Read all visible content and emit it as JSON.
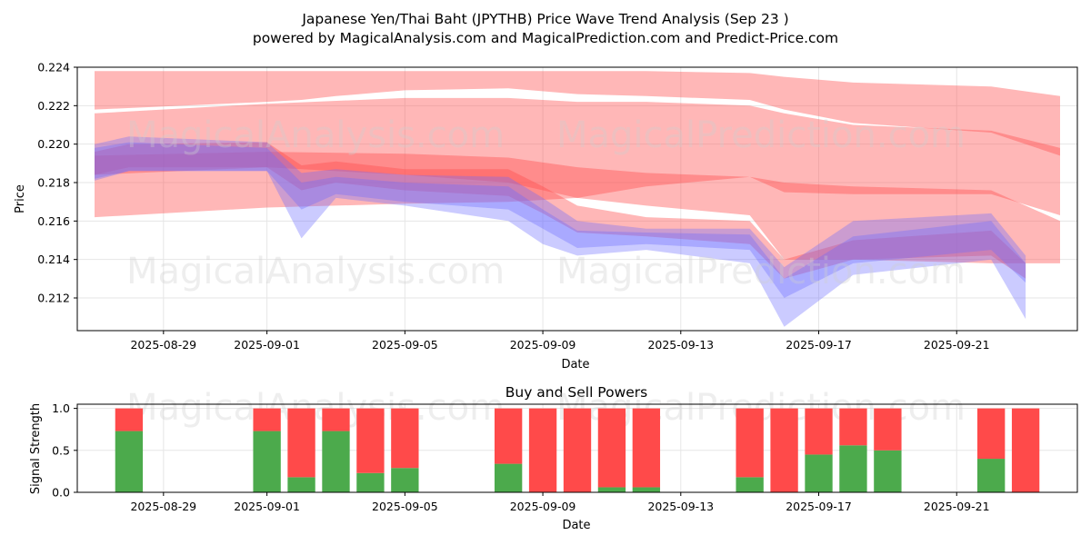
{
  "chart_data": [
    {
      "type": "area",
      "title": "Japanese Yen/Thai Baht (JPYTHB) Price Wave Trend Analysis (Sep 23 )",
      "subtitle": "powered by MagicalAnalysis.com and MagicalPrediction.com and Predict-Price.com",
      "xlabel": "Date",
      "ylabel": "Price",
      "xlim": [
        "2025-08-26T12:00",
        "2025-09-24T12:00"
      ],
      "ylim": [
        0.2103,
        0.224
      ],
      "x_ticks": [
        "2025-08-29",
        "2025-09-01",
        "2025-09-05",
        "2025-09-09",
        "2025-09-13",
        "2025-09-17",
        "2025-09-21"
      ],
      "y_ticks": [
        "0.212",
        "0.214",
        "0.216",
        "0.218",
        "0.220",
        "0.222",
        "0.224"
      ],
      "grid": true,
      "watermarks": [
        "MagicalAnalysis.com",
        "MagicalPrediction.com"
      ],
      "colors": {
        "red_band": "#ff4a4a",
        "blue_band": "#6a6aff"
      },
      "series": [
        {
          "kind": "red_wave",
          "x": [
            "2025-08-27",
            "2025-09-01",
            "2025-09-02",
            "2025-09-03",
            "2025-09-05",
            "2025-09-08",
            "2025-09-10",
            "2025-09-12",
            "2025-09-15",
            "2025-09-16",
            "2025-09-18",
            "2025-09-22",
            "2025-09-24"
          ],
          "upper": [
            0.2238,
            0.2238,
            0.2238,
            0.2238,
            0.2238,
            0.2238,
            0.2238,
            0.2238,
            0.2237,
            0.2235,
            0.2232,
            0.223,
            0.2225
          ],
          "lower": [
            0.2218,
            0.2222,
            0.2223,
            0.2225,
            0.2228,
            0.2229,
            0.2226,
            0.2225,
            0.2223,
            0.2218,
            0.2211,
            0.2206,
            0.2194
          ]
        },
        {
          "kind": "red_wave",
          "x": [
            "2025-08-27",
            "2025-09-01",
            "2025-09-05",
            "2025-09-08",
            "2025-09-10",
            "2025-09-12",
            "2025-09-15",
            "2025-09-16",
            "2025-09-18",
            "2025-09-22",
            "2025-09-24"
          ],
          "upper": [
            0.2216,
            0.2221,
            0.2224,
            0.2224,
            0.2222,
            0.2222,
            0.222,
            0.2216,
            0.221,
            0.2207,
            0.2198
          ],
          "lower": [
            0.2162,
            0.2167,
            0.2169,
            0.217,
            0.2172,
            0.2178,
            0.2183,
            0.2175,
            0.2174,
            0.2174,
            0.2163
          ]
        },
        {
          "kind": "red_wave",
          "x": [
            "2025-08-27",
            "2025-09-01",
            "2025-09-05",
            "2025-09-08",
            "2025-09-10",
            "2025-09-12",
            "2025-09-15",
            "2025-09-16",
            "2025-09-18",
            "2025-09-22",
            "2025-09-24"
          ],
          "upper": [
            0.2194,
            0.2196,
            0.2195,
            0.2193,
            0.2188,
            0.2185,
            0.2183,
            0.218,
            0.2178,
            0.2176,
            0.216
          ],
          "lower": [
            0.2184,
            0.2188,
            0.2184,
            0.218,
            0.2172,
            0.2168,
            0.2163,
            0.214,
            0.214,
            0.2138,
            0.2138
          ]
        },
        {
          "kind": "red_wave",
          "x": [
            "2025-08-27",
            "2025-08-28",
            "2025-09-01",
            "2025-09-02",
            "2025-09-03",
            "2025-09-05",
            "2025-09-08",
            "2025-09-09",
            "2025-09-10",
            "2025-09-12",
            "2025-09-15",
            "2025-09-16",
            "2025-09-18",
            "2025-09-22",
            "2025-09-23"
          ],
          "upper": [
            0.2196,
            0.22,
            0.2201,
            0.2189,
            0.2191,
            0.2187,
            0.2187,
            0.2178,
            0.2168,
            0.2162,
            0.216,
            0.214,
            0.215,
            0.2155,
            0.2138
          ],
          "lower": [
            0.2184,
            0.2188,
            0.2188,
            0.2176,
            0.218,
            0.2176,
            0.2173,
            0.2164,
            0.2154,
            0.2152,
            0.2148,
            0.213,
            0.214,
            0.2142,
            0.213
          ]
        },
        {
          "kind": "blue_wave",
          "x": [
            "2025-08-27",
            "2025-08-28",
            "2025-09-01",
            "2025-09-02",
            "2025-09-03",
            "2025-09-05",
            "2025-09-08",
            "2025-09-09",
            "2025-09-10",
            "2025-09-12",
            "2025-09-15",
            "2025-09-16",
            "2025-09-18",
            "2025-09-22",
            "2025-09-23"
          ],
          "upper": [
            0.22,
            0.2204,
            0.2201,
            0.2185,
            0.2187,
            0.2184,
            0.2183,
            0.2172,
            0.216,
            0.2156,
            0.2156,
            0.2136,
            0.216,
            0.2164,
            0.2142
          ],
          "lower": [
            0.2181,
            0.2186,
            0.2186,
            0.2166,
            0.2174,
            0.217,
            0.2166,
            0.2156,
            0.2146,
            0.2148,
            0.2145,
            0.212,
            0.2138,
            0.2145,
            0.2128
          ]
        },
        {
          "kind": "blue_wave",
          "x": [
            "2025-08-27",
            "2025-08-28",
            "2025-09-01",
            "2025-09-02",
            "2025-09-03",
            "2025-09-05",
            "2025-09-08",
            "2025-09-09",
            "2025-09-10",
            "2025-09-12",
            "2025-09-15",
            "2025-09-16",
            "2025-09-18",
            "2025-09-22",
            "2025-09-23"
          ],
          "upper": [
            0.2198,
            0.2201,
            0.2198,
            0.218,
            0.2183,
            0.218,
            0.2178,
            0.2166,
            0.2155,
            0.2154,
            0.2153,
            0.213,
            0.2152,
            0.216,
            0.2138
          ],
          "lower": [
            0.2182,
            0.2186,
            0.2186,
            0.2151,
            0.2172,
            0.2168,
            0.216,
            0.2148,
            0.2142,
            0.2145,
            0.2138,
            0.2105,
            0.2132,
            0.214,
            0.2109
          ]
        }
      ]
    },
    {
      "type": "bar",
      "title": "Buy and Sell Powers",
      "xlabel": "Date",
      "ylabel": "Signal Strength",
      "xlim": [
        "2025-08-26T12:00",
        "2025-09-24T12:00"
      ],
      "ylim": [
        0,
        1.05
      ],
      "x_ticks": [
        "2025-08-29",
        "2025-09-01",
        "2025-09-05",
        "2025-09-09",
        "2025-09-13",
        "2025-09-17",
        "2025-09-21"
      ],
      "y_ticks": [
        "0.0",
        "0.5",
        "1.0"
      ],
      "grid": true,
      "colors": {
        "buy": "#4caa4c",
        "sell": "#ff4a4a"
      },
      "dates": [
        "2025-08-28",
        "2025-09-01",
        "2025-09-02",
        "2025-09-03",
        "2025-09-04",
        "2025-09-05",
        "2025-09-08",
        "2025-09-09",
        "2025-09-10",
        "2025-09-11",
        "2025-09-12",
        "2025-09-15",
        "2025-09-16",
        "2025-09-17",
        "2025-09-18",
        "2025-09-19",
        "2025-09-22",
        "2025-09-23"
      ],
      "series": [
        {
          "name": "Buy",
          "values": [
            0.73,
            0.73,
            0.18,
            0.73,
            0.23,
            0.29,
            0.34,
            0.0,
            0.0,
            0.06,
            0.06,
            0.18,
            0.0,
            0.45,
            0.56,
            0.5,
            0.4,
            0.0
          ]
        },
        {
          "name": "Sell",
          "values": [
            0.27,
            0.27,
            0.82,
            0.27,
            0.77,
            0.71,
            0.66,
            1.0,
            1.0,
            0.94,
            0.94,
            0.82,
            1.0,
            0.55,
            0.44,
            0.5,
            0.6,
            1.0
          ]
        }
      ]
    }
  ]
}
